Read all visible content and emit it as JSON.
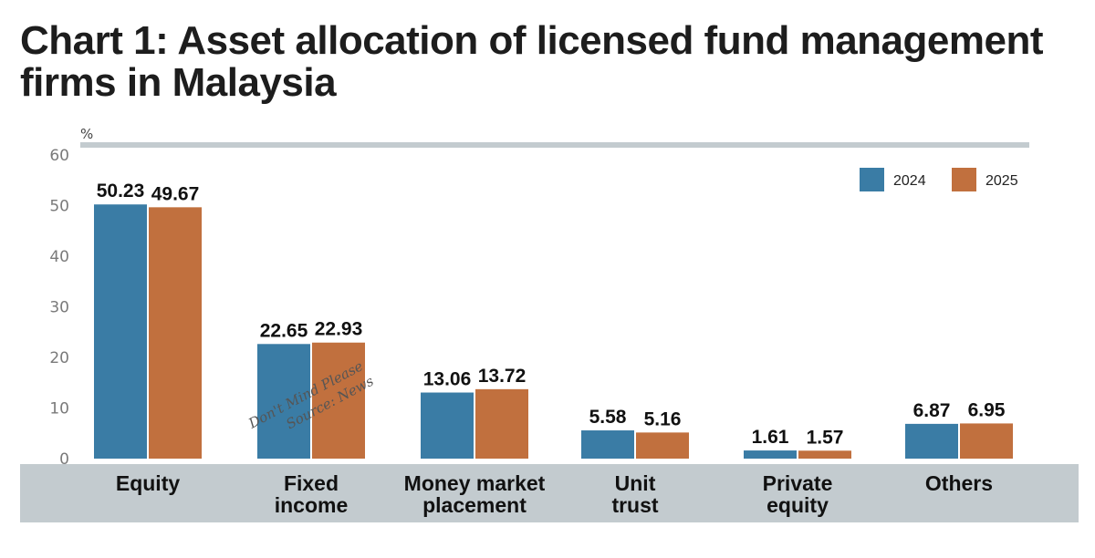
{
  "title": "Chart 1: Asset allocation of licensed fund management firms in Malaysia",
  "colors": {
    "2024": "#3a7ca5",
    "2025": "#c1703e",
    "band": "#c3cbcf"
  },
  "watermark": [
    "Don't Mind Please",
    "Source: News"
  ],
  "chart_data": {
    "type": "bar",
    "title": "Chart 1: Asset allocation of licensed fund management firms in Malaysia",
    "ylabel": "%",
    "ylim": [
      0,
      60
    ],
    "yticks": [
      0,
      10,
      20,
      30,
      40,
      50,
      60
    ],
    "grid": false,
    "legend_position": "top-right",
    "categories": [
      [
        "Equity"
      ],
      [
        "Fixed",
        "income"
      ],
      [
        "Money market",
        "placement"
      ],
      [
        "Unit",
        "trust"
      ],
      [
        "Private",
        "equity"
      ],
      [
        "Others"
      ]
    ],
    "series": [
      {
        "name": "2024",
        "values": [
          50.23,
          22.65,
          13.06,
          5.58,
          1.61,
          6.87
        ]
      },
      {
        "name": "2025",
        "values": [
          49.67,
          22.93,
          13.72,
          5.16,
          1.57,
          6.95
        ]
      }
    ]
  }
}
